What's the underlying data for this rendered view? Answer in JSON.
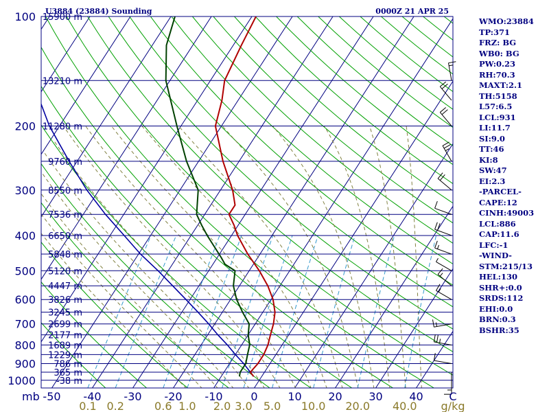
{
  "header": {
    "title": "U3884 (23884) Sounding",
    "datetime": "0000Z 21 APR 25"
  },
  "indices": [
    "WMO:23884",
    "TP:371",
    "FRZ: BG",
    "WB0: BG",
    "PW:0.23",
    "RH:70.3",
    "MAXT:2.1",
    "TH:5158",
    "L57:6.5",
    "LCL:931",
    "LI:11.7",
    "SI:9.0",
    "TT:46",
    "KI:8",
    "SW:47",
    "EI:2.3",
    "-PARCEL-",
    "CAPE:12",
    "CINH:49003",
    "LCL:886",
    "CAP:11.6",
    "LFC:-1",
    "-WIND-",
    "STM:215/13",
    "HEL:130",
    "SHR+:0.0",
    "SRDS:112",
    "EHI:0.0",
    "BRN:0.3",
    "BSHR:35"
  ],
  "colors": {
    "isobar": "#000080",
    "temperature": "#b00000",
    "dewpoint": "#004000",
    "parcel": "#0000a0",
    "isotherm": "#000080",
    "dry_adiabat": "#00a000",
    "moist_adiabat": "#808040",
    "mixing_ratio": "#3399cc"
  },
  "chart_data": {
    "type": "line",
    "title": "U3884 (23884) Sounding",
    "subtitle": "0000Z 21 APR 25",
    "xlabel_left": "mb",
    "mixing_ratio_unit": "g/kg",
    "pressure_levels": [
      100,
      200,
      300,
      400,
      500,
      600,
      700,
      800,
      900,
      1000
    ],
    "pressure_labels": [
      "100",
      "200",
      "300",
      "400",
      "500",
      "600",
      "700",
      "800",
      "900",
      "1000"
    ],
    "pressure_range": [
      100,
      1050
    ],
    "log_pressure": true,
    "height_labels": [
      {
        "p": 100,
        "label": "15900 m"
      },
      {
        "p": 150,
        "label": "13210 m"
      },
      {
        "p": 200,
        "label": "11280 m"
      },
      {
        "p": 250,
        "label": "9760 m"
      },
      {
        "p": 300,
        "label": "8550 m"
      },
      {
        "p": 350,
        "label": "7536 m"
      },
      {
        "p": 400,
        "label": "6650 m"
      },
      {
        "p": 450,
        "label": "5848 m"
      },
      {
        "p": 500,
        "label": "5120 m"
      },
      {
        "p": 550,
        "label": "4447 m"
      },
      {
        "p": 600,
        "label": "3826 m"
      },
      {
        "p": 650,
        "label": "3245 m"
      },
      {
        "p": 700,
        "label": "2699 m"
      },
      {
        "p": 750,
        "label": "2177 m"
      },
      {
        "p": 800,
        "label": "1689 m"
      },
      {
        "p": 850,
        "label": "1229 m"
      },
      {
        "p": 900,
        "label": "786 m"
      },
      {
        "p": 950,
        "label": "365 m"
      },
      {
        "p": 1000,
        "label": "-38 m"
      }
    ],
    "temperature_ticks": [
      -50,
      -40,
      -30,
      -20,
      -10,
      0,
      10,
      20,
      30,
      40
    ],
    "temperature_tick_labels": [
      "-50",
      "-40",
      "-30",
      "-20",
      "-10",
      "0",
      "10",
      "20",
      "30",
      "40",
      "C"
    ],
    "mixing_ratio_ticks": [
      0.1,
      0.2,
      0.6,
      1.0,
      2.0,
      3.0,
      5.0,
      10.0,
      20.0,
      40.0
    ],
    "mixing_ratio_tick_labels": [
      "0.1",
      "0.2",
      "0.6",
      "1.0",
      "2.0",
      "3.0",
      "5.0",
      "10.0",
      "20.0",
      "40.0"
    ],
    "series": [
      {
        "key": "temperature",
        "points": [
          [
            976,
            -2.0
          ],
          [
            950,
            -3.5
          ],
          [
            900,
            -3.0
          ],
          [
            850,
            -3.0
          ],
          [
            800,
            -3.5
          ],
          [
            750,
            -4.5
          ],
          [
            700,
            -5.5
          ],
          [
            650,
            -7.0
          ],
          [
            600,
            -9.5
          ],
          [
            550,
            -13.0
          ],
          [
            500,
            -17.5
          ],
          [
            450,
            -23.0
          ],
          [
            400,
            -28.5
          ],
          [
            375,
            -31.0
          ],
          [
            350,
            -34.0
          ],
          [
            330,
            -34.0
          ],
          [
            300,
            -37.0
          ],
          [
            250,
            -44.0
          ],
          [
            200,
            -51.5
          ],
          [
            170,
            -54.0
          ],
          [
            150,
            -56.5
          ],
          [
            120,
            -58.0
          ],
          [
            100,
            -59.0
          ]
        ]
      },
      {
        "key": "dewpoint",
        "points": [
          [
            976,
            -5.5
          ],
          [
            950,
            -6.0
          ],
          [
            900,
            -6.0
          ],
          [
            850,
            -7.0
          ],
          [
            800,
            -8.0
          ],
          [
            750,
            -10.0
          ],
          [
            700,
            -11.5
          ],
          [
            650,
            -15.0
          ],
          [
            600,
            -18.5
          ],
          [
            550,
            -21.5
          ],
          [
            500,
            -23.5
          ],
          [
            480,
            -27.0
          ],
          [
            460,
            -29.0
          ],
          [
            400,
            -36.0
          ],
          [
            375,
            -39.0
          ],
          [
            350,
            -42.0
          ],
          [
            300,
            -45.5
          ],
          [
            250,
            -53.0
          ],
          [
            200,
            -61.0
          ],
          [
            150,
            -71.0
          ],
          [
            120,
            -76.5
          ],
          [
            100,
            -79.0
          ]
        ]
      },
      {
        "key": "parcel",
        "points": [
          [
            976,
            -2.0
          ],
          [
            950,
            -3.5
          ],
          [
            900,
            -6.5
          ],
          [
            850,
            -10.0
          ],
          [
            800,
            -13.5
          ],
          [
            750,
            -17.5
          ],
          [
            700,
            -21.5
          ],
          [
            650,
            -26.0
          ],
          [
            600,
            -31.0
          ],
          [
            550,
            -36.5
          ],
          [
            500,
            -42.5
          ],
          [
            450,
            -49.5
          ],
          [
            400,
            -56.5
          ],
          [
            350,
            -64.5
          ],
          [
            300,
            -73.0
          ],
          [
            250,
            -82.0
          ],
          [
            200,
            -92.5
          ],
          [
            150,
            -104.0
          ],
          [
            120,
            -111.5
          ],
          [
            112,
            -114.0
          ]
        ]
      }
    ],
    "wind_barbs": [
      {
        "p": 150,
        "dir": 350,
        "spd": 15
      },
      {
        "p": 170,
        "dir": 320,
        "spd": 20
      },
      {
        "p": 200,
        "dir": 320,
        "spd": 20
      },
      {
        "p": 250,
        "dir": 330,
        "spd": 25
      },
      {
        "p": 300,
        "dir": 310,
        "spd": 20
      },
      {
        "p": 350,
        "dir": 290,
        "spd": 10
      },
      {
        "p": 400,
        "dir": 290,
        "spd": 20
      },
      {
        "p": 450,
        "dir": 290,
        "spd": 15
      },
      {
        "p": 500,
        "dir": 300,
        "spd": 5
      },
      {
        "p": 550,
        "dir": 310,
        "spd": 15
      },
      {
        "p": 600,
        "dir": 300,
        "spd": 15
      },
      {
        "p": 700,
        "dir": 260,
        "spd": 15
      },
      {
        "p": 800,
        "dir": 280,
        "spd": 25
      },
      {
        "p": 900,
        "dir": 280,
        "spd": 10
      },
      {
        "p": 950,
        "dir": 180,
        "spd": 5
      },
      {
        "p": 976,
        "dir": 180,
        "spd": 10
      }
    ]
  }
}
